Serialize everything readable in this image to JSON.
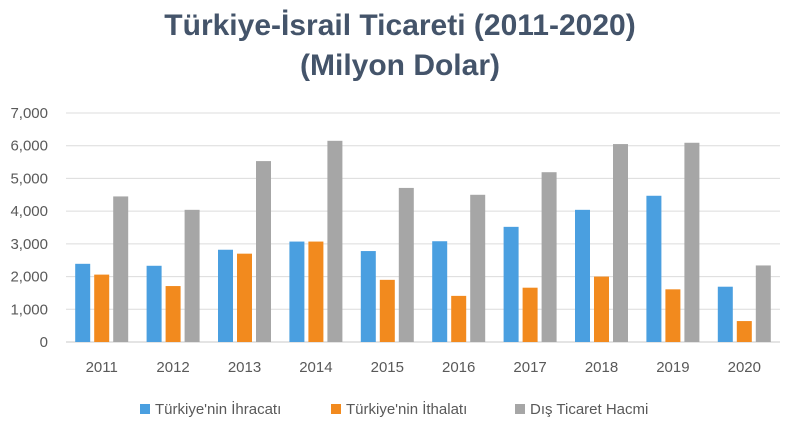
{
  "chart_data": {
    "type": "bar",
    "title": "Türkiye-İsrail Ticareti (2011-2020)",
    "subtitle": "(Milyon Dolar)",
    "categories": [
      "2011",
      "2012",
      "2013",
      "2014",
      "2015",
      "2016",
      "2017",
      "2018",
      "2019",
      "2020"
    ],
    "series": [
      {
        "name": "Türkiye'nin İhracatı",
        "color": "#4a9fe0",
        "values": [
          2390,
          2330,
          2820,
          3070,
          2780,
          3080,
          3520,
          4040,
          4470,
          1690
        ]
      },
      {
        "name": "Türkiye'nin İthalatı",
        "color": "#f28a1e",
        "values": [
          2060,
          1710,
          2700,
          3070,
          1900,
          1410,
          1660,
          2000,
          1610,
          640
        ]
      },
      {
        "name": "Dış Ticaret Hacmi",
        "color": "#a6a6a6",
        "values": [
          4450,
          4040,
          5530,
          6150,
          4710,
          4500,
          5190,
          6050,
          6090,
          2340
        ]
      }
    ],
    "ylim": [
      0,
      7000
    ],
    "yticks": [
      0,
      1000,
      2000,
      3000,
      4000,
      5000,
      6000,
      7000
    ],
    "ytick_labels": [
      "0",
      "1,000",
      "2,000",
      "3,000",
      "4,000",
      "5,000",
      "6,000",
      "7,000"
    ],
    "grid": true,
    "legend": "bottom"
  }
}
